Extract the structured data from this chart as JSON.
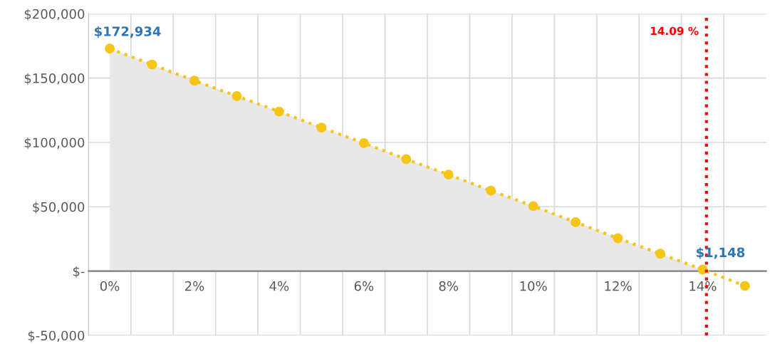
{
  "chart_data": {
    "type": "line",
    "x": [
      0,
      1,
      2,
      3,
      4,
      5,
      6,
      7,
      8,
      9,
      10,
      11,
      12,
      13,
      14,
      15
    ],
    "series": [
      {
        "type": "area",
        "color": "#e8e8e8",
        "values": [
          173000,
          160500,
          148000,
          136000,
          124000,
          111500,
          99500,
          87000,
          75000,
          62500,
          50500,
          38000,
          25500,
          13500,
          1000,
          null
        ]
      },
      {
        "color": "#f5c518",
        "marker": "circle",
        "line_style": "dotted",
        "values": [
          172934,
          160500,
          148000,
          136000,
          124000,
          111500,
          99500,
          87000,
          75000,
          62500,
          50500,
          38000,
          25500,
          13500,
          1148,
          -11500
        ],
        "value_labels": [
          "$172,934",
          null,
          null,
          null,
          null,
          null,
          null,
          null,
          null,
          null,
          null,
          null,
          null,
          null,
          "$1,148",
          null
        ]
      }
    ],
    "xlim": [
      -0.5,
      15.5
    ],
    "xticks": [
      {
        "value": 0,
        "label": "0%"
      },
      {
        "value": 2,
        "label": "2%"
      },
      {
        "value": 4,
        "label": "4%"
      },
      {
        "value": 6,
        "label": "6%"
      },
      {
        "value": 8,
        "label": "8%"
      },
      {
        "value": 10,
        "label": "10%"
      },
      {
        "value": 12,
        "label": "12%"
      },
      {
        "value": 14,
        "label": "14%"
      },
      {
        "value": 0.5,
        "label": null
      },
      {
        "value": 1.5,
        "label": null
      },
      {
        "value": 2.5,
        "label": null
      },
      {
        "value": 3.5,
        "label": null
      },
      {
        "value": 4.5,
        "label": null
      },
      {
        "value": 5.5,
        "label": null
      },
      {
        "value": 6.5,
        "label": null
      },
      {
        "value": 7.5,
        "label": null
      },
      {
        "value": 8.5,
        "label": null
      },
      {
        "value": 9.5,
        "label": null
      },
      {
        "value": 10.5,
        "label": null
      },
      {
        "value": 11.5,
        "label": null
      },
      {
        "value": 12.5,
        "label": null
      },
      {
        "value": 13.5,
        "label": null
      },
      {
        "value": 14.5,
        "label": null
      }
    ],
    "ylim": [
      -50000,
      200000
    ],
    "yticks": [
      {
        "value": -50000,
        "label": "$-50,000"
      },
      {
        "value": 0,
        "label": "$-"
      },
      {
        "value": 50000,
        "label": "$50,000"
      },
      {
        "value": 100000,
        "label": "$100,000"
      },
      {
        "value": 150000,
        "label": "$150,000"
      },
      {
        "value": 200000,
        "label": "$200,000"
      }
    ],
    "grid": true,
    "ref_lines": [
      {
        "axis": "x",
        "value": 14.09,
        "label": "14.09 %",
        "color": "#ff0000",
        "line_style": "dotted"
      }
    ]
  }
}
